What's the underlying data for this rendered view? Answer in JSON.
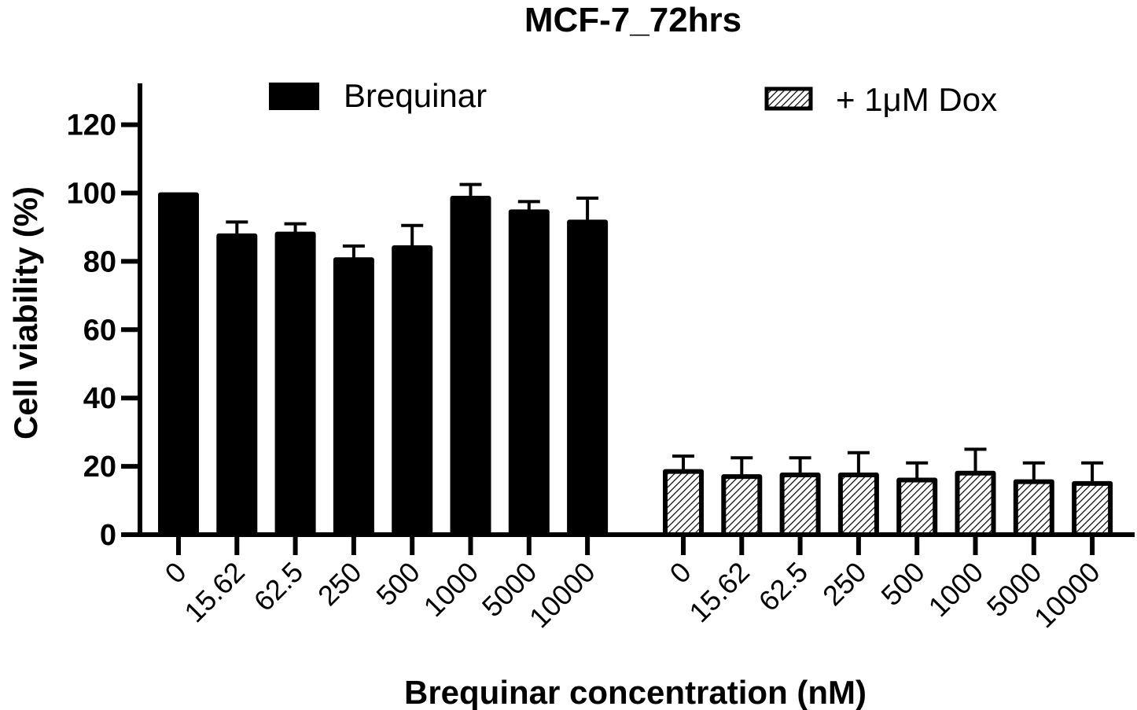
{
  "chart_data": {
    "type": "bar",
    "title": "MCF-7_72hrs",
    "xlabel": "Brequinar concentration (nM)",
    "ylabel": "Cell viability (%)",
    "ylim": [
      0,
      130
    ],
    "yticks": [
      0,
      20,
      40,
      60,
      80,
      100,
      120
    ],
    "grid": false,
    "legend_position": "top",
    "groups": [
      {
        "name": "Brequinar",
        "fill": "solid",
        "color": "#000000",
        "categories": [
          "0",
          "15.62",
          "62.5",
          "250",
          "500",
          "1000",
          "5000",
          "10000"
        ],
        "values": [
          99.5,
          87.5,
          88,
          80.5,
          84,
          98.5,
          94.5,
          91.5
        ],
        "errors": [
          0,
          4,
          3,
          4,
          6.5,
          4,
          3,
          7
        ]
      },
      {
        "name": "+ 1μM Dox",
        "fill": "hatched",
        "color": "#000000",
        "categories": [
          "0",
          "15.62",
          "62.5",
          "250",
          "500",
          "1000",
          "5000",
          "10000"
        ],
        "values": [
          18.5,
          17,
          17.5,
          17.5,
          16,
          18,
          15.5,
          15
        ],
        "errors": [
          4.5,
          5.5,
          5,
          6.5,
          5,
          7,
          5.5,
          6
        ]
      }
    ]
  }
}
